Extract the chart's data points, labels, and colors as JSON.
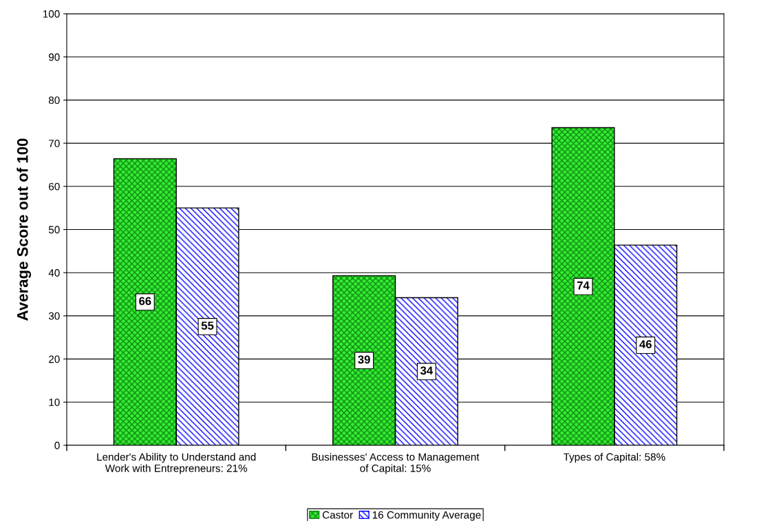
{
  "chart_data": {
    "type": "bar",
    "ylabel": "Average Score out of 100",
    "categories": [
      "Lender's Ability to Understand and\nWork with Entrepreneurs: 21%",
      "Businesses' Access to Management\nof Capital: 15%",
      "Types of Capital: 58%"
    ],
    "series": [
      {
        "name": "Castor",
        "color": "#33ee33",
        "values": [
          66.4,
          39.3,
          73.6
        ],
        "value_labels": [
          "66",
          "39",
          "74"
        ]
      },
      {
        "name": "16 Community Average",
        "color": "#0000ff",
        "values": [
          55,
          34.2,
          46.4
        ],
        "value_labels": [
          "55",
          "34",
          "46"
        ]
      }
    ],
    "ylim": [
      0,
      100
    ],
    "yticks": [
      0,
      10,
      20,
      30,
      40,
      50,
      60,
      70,
      80,
      90,
      100
    ],
    "grid": "y",
    "legend": "bottom"
  }
}
